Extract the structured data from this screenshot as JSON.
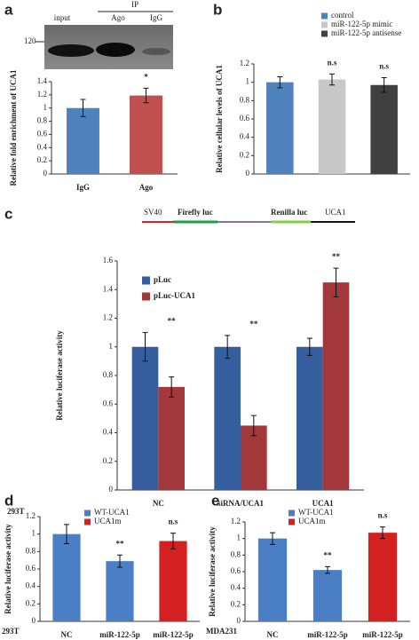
{
  "blot": {
    "panel": "a",
    "marker": "120",
    "lanes": [
      "input",
      "Ago",
      "IgG"
    ],
    "group": "IP"
  },
  "construct": {
    "panel": "c",
    "labels": [
      "SV40",
      "Firefly luc",
      "Renilla luc",
      "UCA1"
    ]
  },
  "chart_data": [
    {
      "panel": "a",
      "type": "bar",
      "ylabel": "Relative fold enrichment of UCA1",
      "categories": [
        "IgG",
        "Ago"
      ],
      "ylim": [
        0,
        1.4
      ],
      "yticks": [
        0,
        0.2,
        0.4,
        0.6,
        0.8,
        1,
        1.2,
        1.4
      ],
      "series": [
        {
          "color": "#4f81bd",
          "values": [
            1.0,
            null
          ],
          "errors": [
            0.13,
            null
          ]
        },
        {
          "color": "#c0504d",
          "values": [
            null,
            1.19
          ],
          "errors": [
            null,
            0.11
          ],
          "annotations": [
            null,
            "*"
          ]
        }
      ]
    },
    {
      "panel": "b",
      "type": "bar",
      "ylabel": "Relative cellular levels of UCA1",
      "categories": [
        null,
        null,
        null
      ],
      "ylim": [
        0,
        1.2
      ],
      "yticks": [
        0,
        0.2,
        0.4,
        0.6,
        0.8,
        1,
        1.2
      ],
      "series": [
        {
          "name": "control",
          "color": "#4f81bd",
          "values": [
            1.0,
            null,
            null
          ],
          "errors": [
            0.06,
            null,
            null
          ]
        },
        {
          "name": "miR-122-5p mimic",
          "color": "#c8c8c8",
          "values": [
            null,
            1.03,
            null
          ],
          "errors": [
            null,
            0.06,
            null
          ],
          "annotations": [
            null,
            "n.s",
            null
          ]
        },
        {
          "name": "miR-122-5p antisense",
          "color": "#404040",
          "values": [
            null,
            null,
            0.97
          ],
          "errors": [
            null,
            null,
            0.08
          ],
          "annotations": [
            null,
            null,
            "n.s"
          ]
        }
      ]
    },
    {
      "panel": "c",
      "type": "bar",
      "ylabel": "Relative luciferase activity",
      "cell_line": "293T",
      "categories": [
        "NC",
        "siRNA/UCA1",
        "UCA1"
      ],
      "ylim": [
        0,
        1.6
      ],
      "yticks": [
        0,
        0.2,
        0.4,
        0.6,
        0.8,
        1,
        1.2,
        1.4,
        1.6
      ],
      "series": [
        {
          "name": "pLuc",
          "color": "#355e9e",
          "values": [
            1.0,
            1.0,
            1.0
          ],
          "errors": [
            0.1,
            0.08,
            0.06
          ]
        },
        {
          "name": "pLuc-UCA1",
          "color": "#a2383a",
          "values": [
            0.72,
            0.45,
            1.45
          ],
          "errors": [
            0.07,
            0.07,
            0.1
          ],
          "annotations": [
            "**",
            "**",
            "**"
          ]
        }
      ]
    },
    {
      "panel": "d",
      "type": "bar",
      "ylabel": "Relative luciferase activity",
      "cell_line": "293T",
      "categories": [
        "NC",
        "miR-122-5p",
        "miR-122-5p"
      ],
      "ylim": [
        0,
        1.2
      ],
      "yticks": [
        0,
        0.2,
        0.4,
        0.6,
        0.8,
        1,
        1.2
      ],
      "series": [
        {
          "name": "WT-UCA1",
          "color": "#4a7fc6",
          "values": [
            1.0,
            0.69,
            null
          ],
          "errors": [
            0.11,
            0.07,
            null
          ],
          "annotations": [
            null,
            "**",
            null
          ]
        },
        {
          "name": "UCA1m",
          "color": "#d42020",
          "values": [
            null,
            null,
            0.92
          ],
          "errors": [
            null,
            null,
            0.09
          ],
          "annotations": [
            null,
            null,
            "n.s"
          ]
        }
      ]
    },
    {
      "panel": "e",
      "type": "bar",
      "ylabel": "Relative luciferase activity",
      "cell_line": "MDA231",
      "categories": [
        "NC",
        "miR-122-5p",
        "miR-122-5p"
      ],
      "ylim": [
        0,
        1.2
      ],
      "yticks": [
        0,
        0.2,
        0.4,
        0.6,
        0.8,
        1,
        1.2
      ],
      "series": [
        {
          "name": "WT-UCA1",
          "color": "#4a7fc6",
          "values": [
            1.0,
            0.62,
            null
          ],
          "errors": [
            0.07,
            0.04,
            null
          ],
          "annotations": [
            null,
            "**",
            null
          ]
        },
        {
          "name": "UCA1m",
          "color": "#d42020",
          "values": [
            null,
            null,
            1.07
          ],
          "errors": [
            null,
            null,
            0.07
          ],
          "annotations": [
            null,
            null,
            "n.s"
          ]
        }
      ]
    }
  ]
}
